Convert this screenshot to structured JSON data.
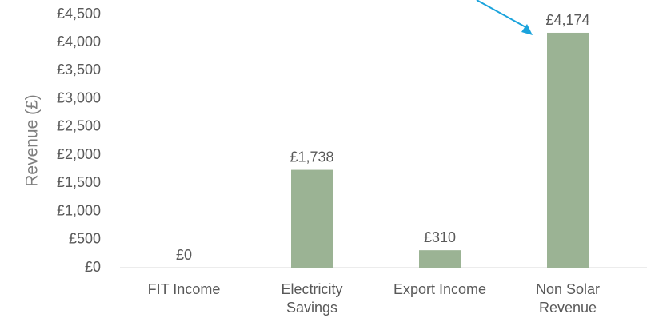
{
  "chart_data": {
    "type": "bar",
    "ylabel": "Revenue (£)",
    "ylim": [
      0,
      4500
    ],
    "y_ticks": [
      "£0",
      "£500",
      "£1,000",
      "£1,500",
      "£2,000",
      "£2,500",
      "£3,000",
      "£3,500",
      "£4,000",
      "£4,500"
    ],
    "categories": [
      [
        "FIT Income"
      ],
      [
        "Electricity",
        "Savings"
      ],
      [
        "Export Income"
      ],
      [
        "Non Solar",
        "Revenue"
      ]
    ],
    "values": [
      0,
      1738,
      310,
      4174
    ],
    "data_labels": [
      "£0",
      "£1,738",
      "£310",
      "£4,174"
    ],
    "bar_color": "#9bb394",
    "arrow_color": "#1aa3dc",
    "grid": false
  }
}
